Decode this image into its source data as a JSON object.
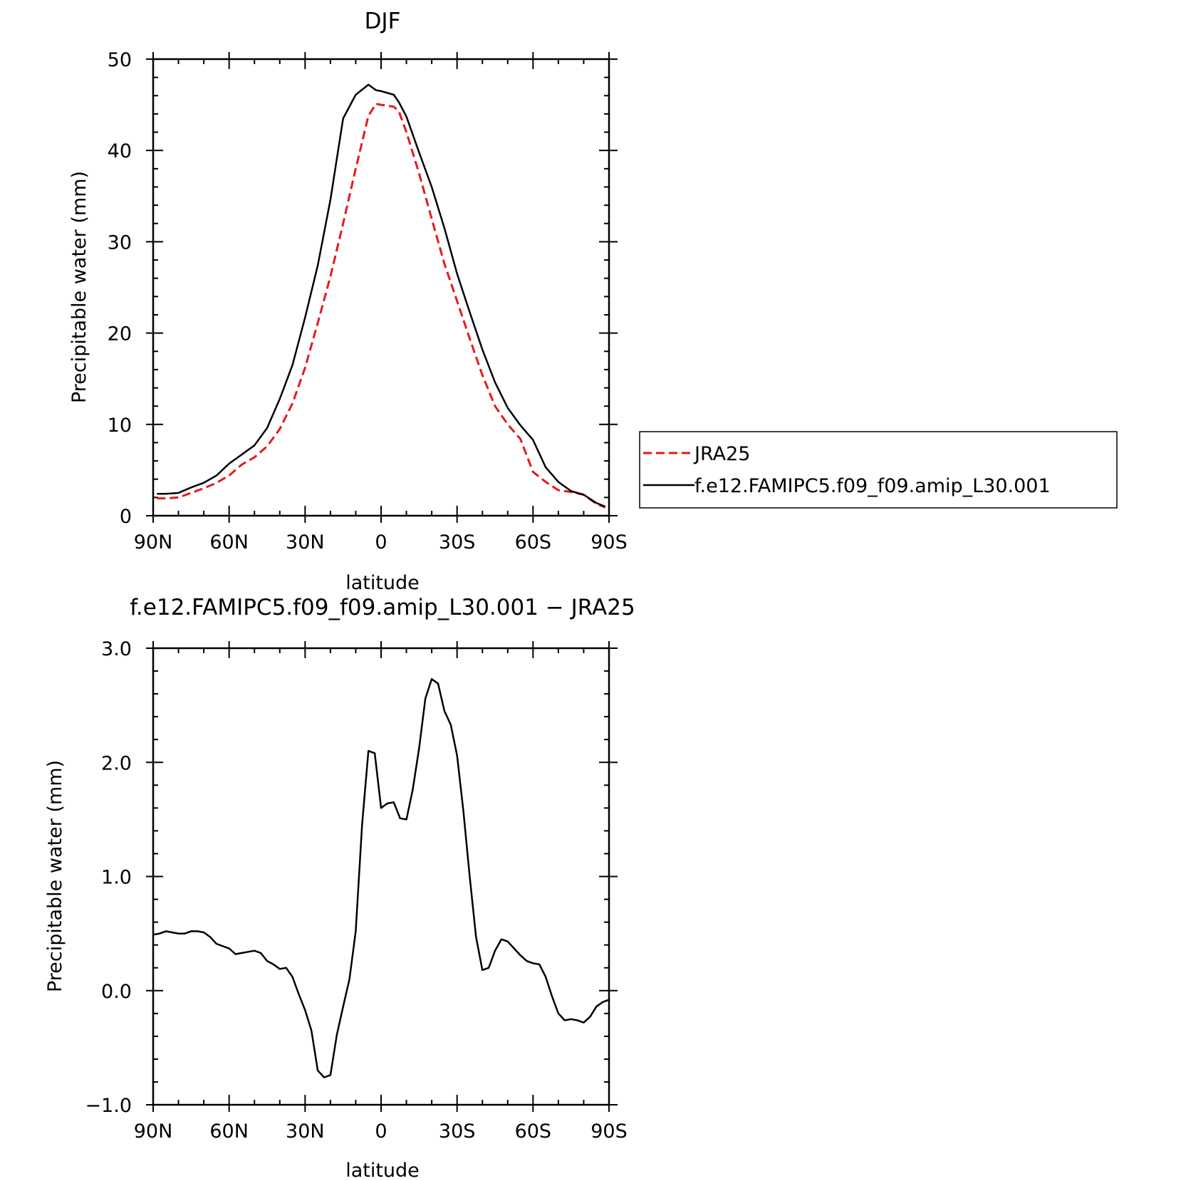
{
  "chart_data": [
    {
      "type": "line",
      "title": "DJF",
      "xlabel": "latitude",
      "ylabel": "Precipitable water (mm)",
      "xlim": [
        90,
        -90
      ],
      "ylim": [
        0,
        50
      ],
      "xticks": [
        90,
        60,
        30,
        0,
        -30,
        -60,
        -90
      ],
      "xtick_labels": [
        "90N",
        "60N",
        "30N",
        "0",
        "30S",
        "60S",
        "90S"
      ],
      "yticks": [
        0,
        10,
        20,
        30,
        40,
        50
      ],
      "ytick_labels": [
        "0",
        "10",
        "20",
        "30",
        "40",
        "50"
      ],
      "grid": false,
      "legend_position": "right",
      "series": [
        {
          "name": "JRA25",
          "color": "#e41a1c",
          "dash": "dashed",
          "x": [
            88.5,
            85,
            80,
            75,
            70,
            65,
            60,
            55,
            50,
            45,
            40,
            35,
            30,
            25,
            20,
            15,
            10,
            5,
            2,
            0,
            -5,
            -7,
            -10,
            -15,
            -20,
            -25,
            -30,
            -35,
            -40,
            -45,
            -50,
            -55,
            -60,
            -65,
            -70,
            -75,
            -80,
            -85,
            -88.5
          ],
          "y": [
            1.9,
            1.9,
            2.0,
            2.5,
            3.0,
            3.6,
            4.4,
            5.6,
            6.4,
            7.6,
            9.5,
            12.3,
            16.2,
            21.1,
            26.2,
            32.0,
            38.0,
            43.8,
            45.1,
            45.0,
            44.8,
            44.3,
            42.0,
            37.5,
            32.5,
            27.6,
            23.5,
            19.4,
            15.4,
            12.0,
            10.0,
            8.4,
            4.8,
            3.7,
            2.8,
            2.6,
            2.3,
            1.3,
            0.9
          ]
        },
        {
          "name": "f.e12.FAMIPC5.f09_f09.amip_L30.001",
          "color": "#000000",
          "dash": "solid",
          "x": [
            88.5,
            85,
            80,
            75,
            70,
            65,
            60,
            55,
            50,
            45,
            40,
            35,
            30,
            25,
            20,
            15,
            10,
            5,
            2,
            0,
            -5,
            -7,
            -10,
            -15,
            -20,
            -25,
            -30,
            -35,
            -40,
            -45,
            -50,
            -55,
            -60,
            -65,
            -70,
            -75,
            -80,
            -85,
            -88.5
          ],
          "y": [
            2.4,
            2.4,
            2.5,
            3.1,
            3.6,
            4.4,
            5.7,
            6.7,
            7.7,
            9.6,
            12.8,
            16.5,
            21.7,
            27.4,
            34.6,
            43.5,
            46.1,
            47.2,
            46.6,
            46.5,
            46.1,
            45.3,
            43.7,
            39.8,
            36.0,
            31.5,
            26.5,
            22.3,
            18.2,
            14.6,
            11.8,
            9.9,
            8.3,
            5.3,
            3.7,
            2.7,
            2.3,
            1.4,
            1.0
          ]
        }
      ]
    },
    {
      "type": "line",
      "title": "f.e12.FAMIPC5.f09_f09.amip_L30.001 − JRA25",
      "xlabel": "latitude",
      "ylabel": "Precipitable water (mm)",
      "xlim": [
        90,
        -90
      ],
      "ylim": [
        -1.0,
        3.0
      ],
      "xticks": [
        90,
        60,
        30,
        0,
        -30,
        -60,
        -90
      ],
      "xtick_labels": [
        "90N",
        "60N",
        "30N",
        "0",
        "30S",
        "60S",
        "90S"
      ],
      "yticks": [
        -1.0,
        0.0,
        1.0,
        2.0,
        3.0
      ],
      "ytick_labels": [
        "−1.0",
        "0.0",
        "1.0",
        "2.0",
        "3.0"
      ],
      "grid": false,
      "series": [
        {
          "color": "#000000",
          "dash": "solid",
          "x": [
            90,
            87.5,
            85,
            82.5,
            80,
            77.5,
            75,
            72.5,
            70,
            67.5,
            65,
            62.5,
            60,
            57.5,
            55,
            52.5,
            50,
            47.5,
            45,
            42.5,
            40,
            37.5,
            35,
            32.5,
            30,
            27.5,
            25,
            22.5,
            20,
            17.5,
            15,
            12.5,
            10,
            7.5,
            5,
            2.5,
            0,
            -2.5,
            -5,
            -7.5,
            -10,
            -12.5,
            -15,
            -17.5,
            -20,
            -22.5,
            -25,
            -27.5,
            -30,
            -32.5,
            -35,
            -37.5,
            -40,
            -42.5,
            -45,
            -47.5,
            -50,
            -52.5,
            -55,
            -57.5,
            -60,
            -62.5,
            -65,
            -67.5,
            -70,
            -72.5,
            -75,
            -77.5,
            -80,
            -82.5,
            -85,
            -87.5,
            -90
          ],
          "y": [
            0.49,
            0.5,
            0.52,
            0.51,
            0.5,
            0.5,
            0.52,
            0.52,
            0.51,
            0.47,
            0.41,
            0.39,
            0.37,
            0.32,
            0.33,
            0.34,
            0.35,
            0.33,
            0.26,
            0.23,
            0.19,
            0.2,
            0.12,
            -0.03,
            -0.17,
            -0.35,
            -0.7,
            -0.76,
            -0.74,
            -0.39,
            -0.14,
            0.1,
            0.52,
            1.45,
            2.1,
            2.08,
            1.6,
            1.64,
            1.65,
            1.51,
            1.5,
            1.76,
            2.12,
            2.56,
            2.73,
            2.69,
            2.45,
            2.33,
            2.06,
            1.57,
            1.0,
            0.47,
            0.18,
            0.2,
            0.35,
            0.45,
            0.43,
            0.37,
            0.31,
            0.26,
            0.24,
            0.23,
            0.12,
            -0.05,
            -0.2,
            -0.26,
            -0.25,
            -0.26,
            -0.28,
            -0.23,
            -0.14,
            -0.1,
            -0.08
          ]
        }
      ]
    }
  ]
}
